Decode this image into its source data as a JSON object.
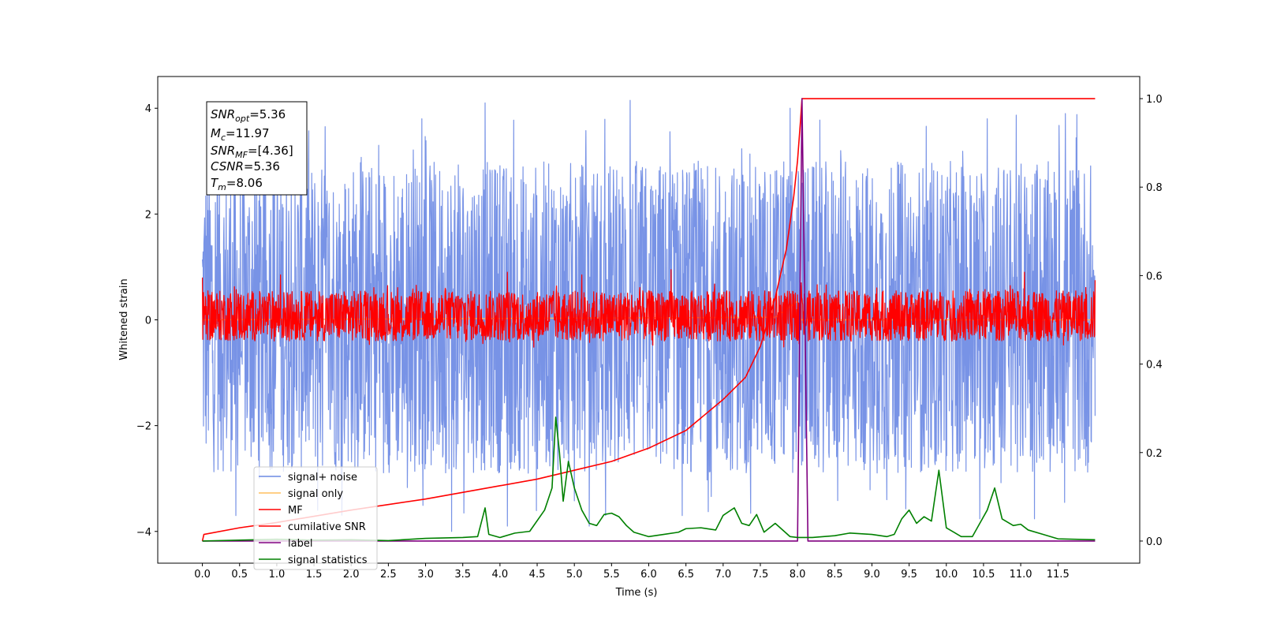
{
  "chart_data": {
    "type": "line",
    "title": "",
    "xlabel": "Time (s)",
    "ylabel": "Whitened strain",
    "xlim": [
      -0.6,
      12.6
    ],
    "ylim": [
      -4.6,
      4.6
    ],
    "y2lim": [
      -0.05,
      1.05
    ],
    "grid": false,
    "legend_position": "lower-left",
    "x_ticks": [
      0.0,
      0.5,
      1.0,
      1.5,
      2.0,
      2.5,
      3.0,
      3.5,
      4.0,
      4.5,
      5.0,
      5.5,
      6.0,
      6.5,
      7.0,
      7.5,
      8.0,
      8.5,
      9.0,
      9.5,
      10.0,
      10.5,
      11.0,
      11.5
    ],
    "x_tick_labels": [
      "0.0",
      "0.5",
      "1.0",
      "1.5",
      "2.0",
      "2.5",
      "3.0",
      "3.5",
      "4.0",
      "4.5",
      "5.0",
      "5.5",
      "6.0",
      "6.5",
      "7.0",
      "7.5",
      "8.0",
      "8.5",
      "9.0",
      "9.5",
      "10.0",
      "10.5",
      "11.0",
      "11.5"
    ],
    "y_ticks": [
      4,
      2,
      0,
      -2,
      -4
    ],
    "y_tick_labels": [
      "4",
      "2",
      "0",
      "−2",
      "−4"
    ],
    "y2_ticks": [
      1.0,
      0.8,
      0.6,
      0.4,
      0.2,
      0.0
    ],
    "y2_tick_labels": [
      "1.0",
      "0.8",
      "0.6",
      "0.4",
      "0.2",
      "0.0"
    ],
    "annotation": {
      "snr_opt": "=5.36",
      "mc": "=11.97",
      "snr_mf": "=[4.36]",
      "csnr": "=5.36",
      "tm": "=8.06"
    },
    "legend": [
      {
        "label": "signal+ noise",
        "color": "#6c8ae4"
      },
      {
        "label": "signal only",
        "color": "#ffbf5f"
      },
      {
        "label": "MF",
        "color": "#ff0000"
      },
      {
        "label": "cumilative SNR",
        "color": "#ff0000"
      },
      {
        "label": "label",
        "color": "#800080"
      },
      {
        "label": "signal statistics",
        "color": "#008000"
      }
    ],
    "series": [
      {
        "name": "signal+ noise",
        "axis": "left",
        "color": "#6c8ae4",
        "description": "noise band roughly between -2.9 and +3.0 with peaks to about ±4.1, spanning t = 0.0 to 12.0 s",
        "band": [
          -2.9,
          3.0
        ],
        "peaks": [
          [
            0.2,
            3.6
          ],
          [
            0.45,
            -3.7
          ],
          [
            1.55,
            -3.6
          ],
          [
            2.95,
            3.8
          ],
          [
            3.35,
            -4.0
          ],
          [
            3.8,
            4.1
          ],
          [
            4.1,
            -3.9
          ],
          [
            5.2,
            -3.9
          ],
          [
            5.75,
            4.15
          ],
          [
            6.45,
            -3.7
          ],
          [
            7.9,
            4.0
          ],
          [
            9.2,
            -3.4
          ],
          [
            10.55,
            3.8
          ],
          [
            11.6,
            3.9
          ]
        ]
      },
      {
        "name": "signal only",
        "axis": "left",
        "color": "#ffbf5f",
        "description": "small chirp near merger, mostly hidden",
        "points": [
          [
            0,
            0
          ],
          [
            7.7,
            0.05
          ],
          [
            7.9,
            0.25
          ],
          [
            8.0,
            0.35
          ],
          [
            8.05,
            0.0
          ],
          [
            12,
            0
          ]
        ]
      },
      {
        "name": "MF",
        "axis": "left",
        "color": "#ff0000",
        "description": "matched-filter output oscillating between about -0.4 and +0.6 with spikes to about 0.9",
        "band": [
          -0.4,
          0.55
        ],
        "peaks": [
          [
            0.0,
            0.8
          ],
          [
            1.05,
            0.85
          ],
          [
            4.1,
            0.9
          ],
          [
            5.1,
            0.85
          ],
          [
            6.3,
            0.95
          ],
          [
            8.05,
            0.7
          ],
          [
            11.05,
            0.9
          ],
          [
            12.0,
            0.75
          ]
        ]
      },
      {
        "name": "cumilative SNR",
        "axis": "right",
        "color": "#ff0000",
        "points": [
          [
            0.0,
            0.0
          ],
          [
            0.02,
            0.015
          ],
          [
            0.5,
            0.03
          ],
          [
            1.0,
            0.042
          ],
          [
            2.0,
            0.07
          ],
          [
            3.0,
            0.095
          ],
          [
            4.0,
            0.125
          ],
          [
            4.5,
            0.14
          ],
          [
            5.0,
            0.16
          ],
          [
            5.5,
            0.18
          ],
          [
            6.0,
            0.21
          ],
          [
            6.5,
            0.25
          ],
          [
            7.0,
            0.32
          ],
          [
            7.3,
            0.37
          ],
          [
            7.5,
            0.44
          ],
          [
            7.7,
            0.55
          ],
          [
            7.85,
            0.66
          ],
          [
            7.95,
            0.78
          ],
          [
            8.0,
            0.86
          ],
          [
            8.04,
            0.95
          ],
          [
            8.06,
            1.0
          ],
          [
            12.0,
            1.0
          ]
        ]
      },
      {
        "name": "label",
        "axis": "right",
        "color": "#800080",
        "points": [
          [
            0.0,
            0.0
          ],
          [
            8.0,
            0.0
          ],
          [
            8.06,
            1.0
          ],
          [
            8.14,
            0.0
          ],
          [
            12.0,
            0.0
          ]
        ]
      },
      {
        "name": "signal statistics",
        "axis": "right",
        "color": "#008000",
        "points": [
          [
            0.0,
            0.0
          ],
          [
            0.5,
            0.002
          ],
          [
            1.0,
            0.004
          ],
          [
            1.5,
            0.002
          ],
          [
            2.0,
            0.003
          ],
          [
            2.5,
            0.001
          ],
          [
            3.0,
            0.006
          ],
          [
            3.5,
            0.008
          ],
          [
            3.7,
            0.01
          ],
          [
            3.8,
            0.075
          ],
          [
            3.85,
            0.015
          ],
          [
            4.0,
            0.008
          ],
          [
            4.2,
            0.018
          ],
          [
            4.4,
            0.022
          ],
          [
            4.6,
            0.07
          ],
          [
            4.7,
            0.12
          ],
          [
            4.75,
            0.28
          ],
          [
            4.8,
            0.2
          ],
          [
            4.85,
            0.09
          ],
          [
            4.92,
            0.18
          ],
          [
            5.0,
            0.12
          ],
          [
            5.1,
            0.07
          ],
          [
            5.2,
            0.04
          ],
          [
            5.3,
            0.035
          ],
          [
            5.4,
            0.06
          ],
          [
            5.5,
            0.063
          ],
          [
            5.6,
            0.055
          ],
          [
            5.7,
            0.035
          ],
          [
            5.8,
            0.02
          ],
          [
            6.0,
            0.01
          ],
          [
            6.2,
            0.015
          ],
          [
            6.4,
            0.02
          ],
          [
            6.5,
            0.028
          ],
          [
            6.7,
            0.03
          ],
          [
            6.9,
            0.025
          ],
          [
            7.0,
            0.058
          ],
          [
            7.15,
            0.075
          ],
          [
            7.25,
            0.04
          ],
          [
            7.35,
            0.035
          ],
          [
            7.45,
            0.06
          ],
          [
            7.55,
            0.02
          ],
          [
            7.7,
            0.04
          ],
          [
            7.9,
            0.01
          ],
          [
            8.0,
            0.008
          ],
          [
            8.2,
            0.008
          ],
          [
            8.5,
            0.012
          ],
          [
            8.7,
            0.018
          ],
          [
            9.0,
            0.015
          ],
          [
            9.2,
            0.01
          ],
          [
            9.3,
            0.015
          ],
          [
            9.4,
            0.05
          ],
          [
            9.5,
            0.07
          ],
          [
            9.6,
            0.04
          ],
          [
            9.7,
            0.055
          ],
          [
            9.8,
            0.045
          ],
          [
            9.9,
            0.16
          ],
          [
            10.0,
            0.03
          ],
          [
            10.1,
            0.02
          ],
          [
            10.2,
            0.01
          ],
          [
            10.35,
            0.01
          ],
          [
            10.45,
            0.04
          ],
          [
            10.55,
            0.07
          ],
          [
            10.65,
            0.12
          ],
          [
            10.75,
            0.05
          ],
          [
            10.9,
            0.035
          ],
          [
            11.0,
            0.038
          ],
          [
            11.1,
            0.025
          ],
          [
            11.3,
            0.015
          ],
          [
            11.5,
            0.005
          ],
          [
            12.0,
            0.003
          ]
        ]
      }
    ]
  }
}
